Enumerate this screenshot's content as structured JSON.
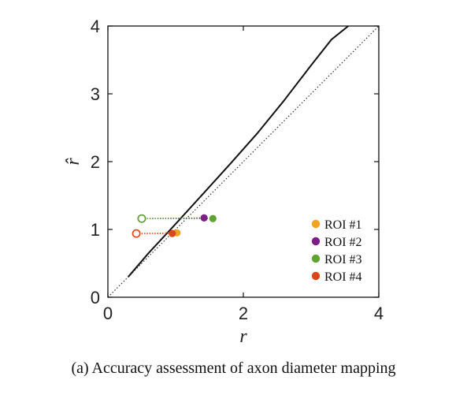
{
  "chart_data": {
    "type": "scatter",
    "xlabel": "r",
    "ylabel": "r̂",
    "xlim": [
      0,
      4
    ],
    "ylim": [
      0,
      4
    ],
    "xticks": [
      "0",
      "2",
      "4"
    ],
    "yticks": [
      "0",
      "1",
      "2",
      "3",
      "4"
    ],
    "grid": false,
    "legend_position": "bottom-right",
    "reference_line": {
      "style": "dotted",
      "x": [
        0,
        4
      ],
      "y": [
        0,
        4
      ]
    },
    "model_curve": {
      "style": "solid",
      "x": [
        0.3,
        0.6,
        1.0,
        1.4,
        1.8,
        2.2,
        2.6,
        3.0,
        3.3,
        3.55
      ],
      "y": [
        0.3,
        0.65,
        1.08,
        1.52,
        1.96,
        2.41,
        2.9,
        3.42,
        3.8,
        4.0
      ]
    },
    "series": [
      {
        "name": "ROI #1",
        "color": "#f0a41c",
        "filled": {
          "x": 1.02,
          "y": 0.95
        },
        "open": {
          "x": 0.42,
          "y": 0.94
        }
      },
      {
        "name": "ROI #2",
        "color": "#7b1f86",
        "filled": {
          "x": 1.42,
          "y": 1.17
        },
        "open": {
          "x": 0.5,
          "y": 1.16
        }
      },
      {
        "name": "ROI #3",
        "color": "#5fa332",
        "filled": {
          "x": 1.55,
          "y": 1.16
        },
        "open": {
          "x": 0.5,
          "y": 1.16
        }
      },
      {
        "name": "ROI #4",
        "color": "#d9471b",
        "filled": {
          "x": 0.95,
          "y": 0.94
        },
        "open": {
          "x": 0.42,
          "y": 0.94
        }
      }
    ]
  },
  "caption": "(a) Accuracy assessment of axon diameter mapping"
}
